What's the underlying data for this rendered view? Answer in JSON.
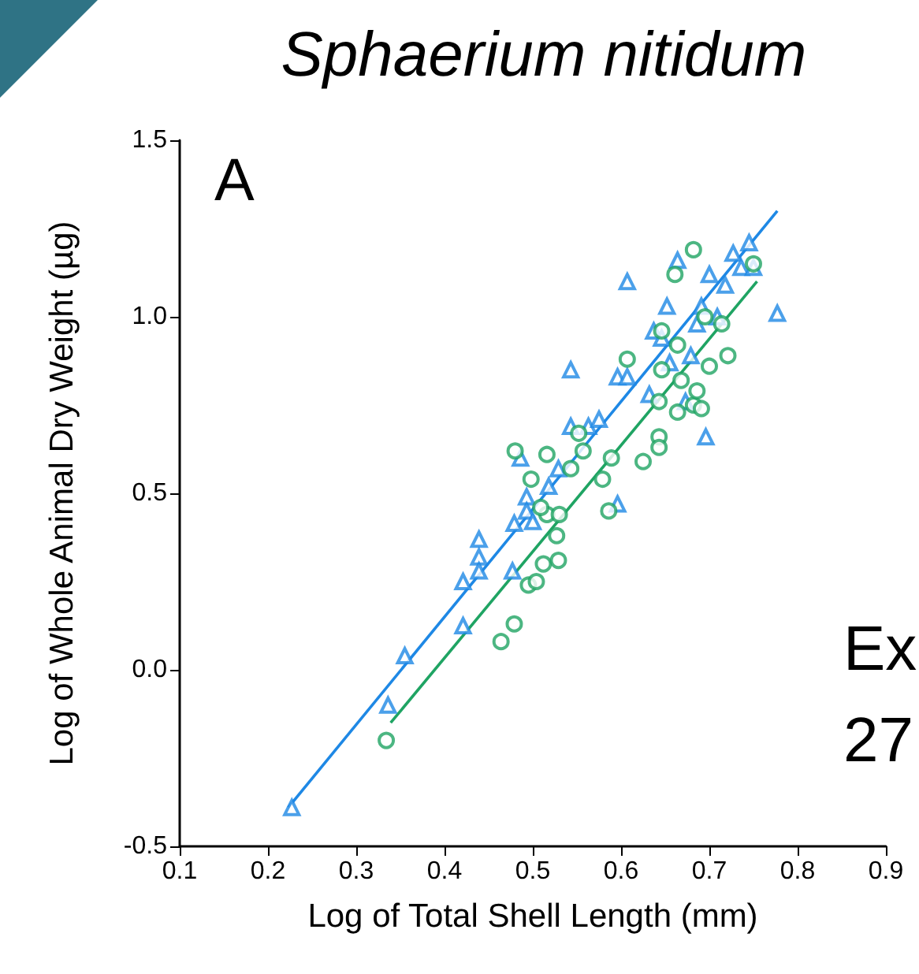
{
  "chart_data": {
    "type": "scatter",
    "title": "Sphaerium nitidum",
    "xlabel": "Log of Total Shell Length (mm)",
    "ylabel": "Log of Whole Animal Dry Weight (µg)",
    "annotations": [
      "A",
      "Ex",
      "27"
    ],
    "xlim": [
      0.1,
      0.9
    ],
    "xticks": [
      0.1,
      0.2,
      0.3,
      0.4,
      0.5,
      0.6,
      0.7,
      0.8,
      0.9
    ],
    "ylim": [
      -0.5,
      1.5
    ],
    "yticks": [
      {
        "value": -0.5,
        "label": "-0.5"
      },
      {
        "value": 0,
        "label": "0.0"
      },
      {
        "value": 0.5,
        "label": "0.5"
      },
      {
        "value": 1,
        "label": "1.0"
      },
      {
        "value": 1.5,
        "label": "1.5"
      }
    ],
    "grid": false,
    "series": [
      {
        "marker": "triangle",
        "color": "#1e88e5",
        "x": [
          0.227,
          0.336,
          0.355,
          0.421,
          0.421,
          0.439,
          0.439,
          0.439,
          0.477,
          0.479,
          0.493,
          0.493,
          0.518,
          0.529,
          0.543,
          0.543,
          0.563,
          0.575,
          0.596,
          0.596,
          0.607,
          0.607,
          0.637,
          0.652,
          0.664,
          0.679,
          0.691,
          0.7,
          0.709,
          0.718,
          0.727,
          0.736,
          0.745,
          0.75,
          0.777,
          0.696,
          0.5,
          0.486,
          0.686,
          0.646,
          0.655,
          0.632,
          0.673
        ],
        "values": [
          -0.39,
          -0.1,
          0.04,
          0.125,
          0.25,
          0.37,
          0.32,
          0.28,
          0.28,
          0.415,
          0.49,
          0.45,
          0.52,
          0.57,
          0.69,
          0.85,
          0.69,
          0.71,
          0.83,
          0.47,
          1.1,
          0.83,
          0.96,
          1.03,
          1.16,
          0.89,
          1.03,
          1.12,
          1.0,
          1.09,
          1.18,
          1.14,
          1.21,
          1.14,
          1.01,
          0.66,
          0.42,
          0.6,
          0.98,
          0.94,
          0.87,
          0.78,
          0.76
        ]
      },
      {
        "marker": "circle",
        "color": "#1fa463",
        "x": [
          0.334,
          0.464,
          0.479,
          0.48,
          0.495,
          0.504,
          0.512,
          0.529,
          0.527,
          0.516,
          0.53,
          0.509,
          0.516,
          0.552,
          0.557,
          0.589,
          0.586,
          0.625,
          0.643,
          0.643,
          0.607,
          0.643,
          0.664,
          0.682,
          0.661,
          0.682,
          0.721,
          0.7,
          0.686,
          0.691,
          0.668,
          0.646,
          0.664,
          0.695,
          0.75,
          0.714,
          0.646,
          0.579,
          0.543,
          0.498
        ],
        "values": [
          -0.2,
          0.08,
          0.13,
          0.62,
          0.24,
          0.25,
          0.3,
          0.31,
          0.38,
          0.44,
          0.44,
          0.46,
          0.61,
          0.67,
          0.62,
          0.6,
          0.45,
          0.59,
          0.66,
          0.63,
          0.88,
          0.76,
          0.73,
          0.75,
          1.12,
          1.19,
          0.89,
          0.86,
          0.79,
          0.74,
          0.82,
          0.96,
          0.92,
          1.0,
          1.15,
          0.98,
          0.85,
          0.54,
          0.57,
          0.54
        ]
      },
      {
        "type": "line",
        "marker": "none",
        "line_style": "solid",
        "color": "#1e88e5",
        "x": [
          0.223,
          0.777
        ],
        "values": [
          -0.39,
          1.3
        ]
      },
      {
        "type": "line",
        "marker": "none",
        "line_style": "solid",
        "color": "#1fa463",
        "x": [
          0.339,
          0.754
        ],
        "values": [
          -0.15,
          1.1
        ]
      }
    ]
  }
}
